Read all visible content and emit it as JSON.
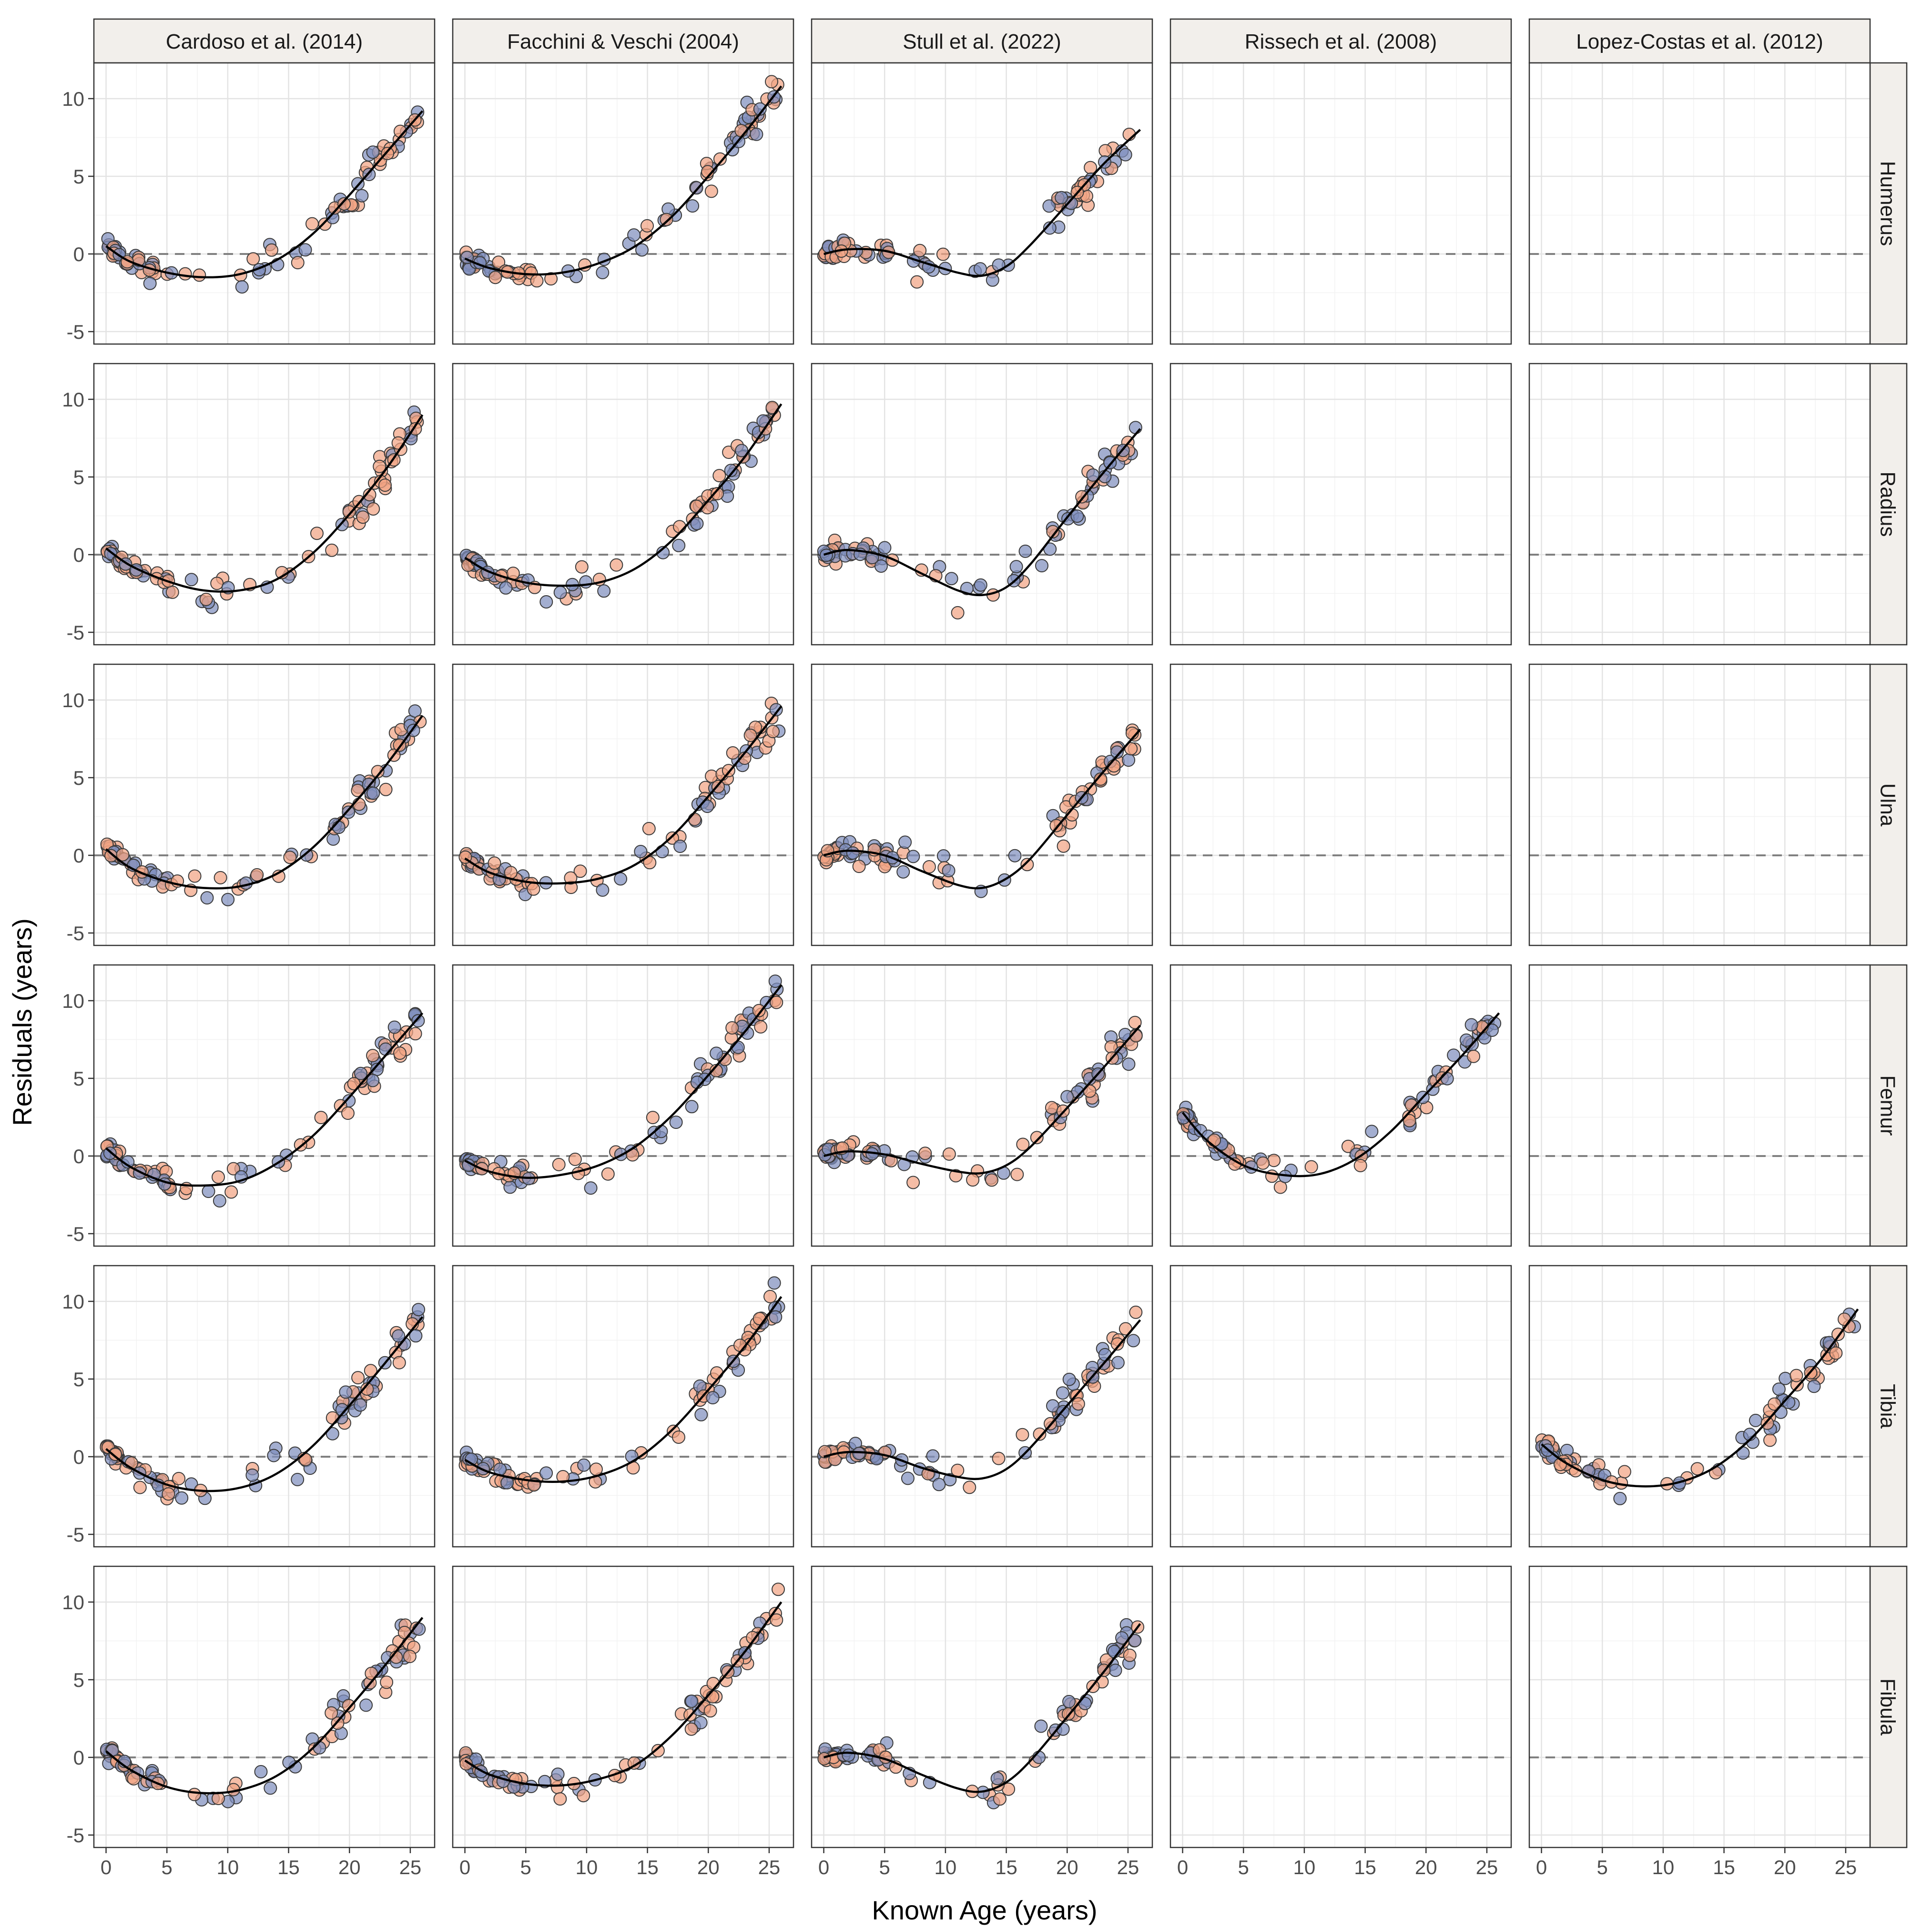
{
  "figure": {
    "xlabel": "Known Age (years)",
    "ylabel": "Residuals (years)",
    "columns": [
      "Cardoso et al. (2014)",
      "Facchini & Veschi (2004)",
      "Stull et al. (2022)",
      "Rissech et al. (2008)",
      "Lopez-Costas et al. (2012)"
    ],
    "rows": [
      "Humerus",
      "Radius",
      "Ulna",
      "Femur",
      "Tibia",
      "Fibula"
    ],
    "x_ticks": [
      "0",
      "5",
      "10",
      "15",
      "20",
      "25"
    ],
    "y_ticks": [
      "-5",
      "0",
      "5",
      "10"
    ],
    "colors": {
      "group_a": "#7f8fbe",
      "group_b": "#f1a383",
      "strip_bg": "#f2efeb",
      "fit_line": "#000000",
      "reference_line": "#808080"
    }
  },
  "chart_data": {
    "type": "scatter",
    "facet": "grid",
    "xlim": [
      -1,
      27
    ],
    "ylim": [
      -5.8,
      12.3
    ],
    "grid": true,
    "reference_line_y": 0,
    "series": [
      "group_a (blue points)",
      "group_b (orange points)",
      "fitted smooth curve"
    ],
    "panels": [
      {
        "row": "Humerus",
        "col": "Cardoso et al. (2014)",
        "has_data": true,
        "trend_x": [
          0,
          2,
          5,
          8,
          11,
          14,
          17,
          20,
          23,
          26
        ],
        "trend_y": [
          0.5,
          -0.5,
          -1.2,
          -1.5,
          -1.3,
          -0.4,
          1.3,
          3.8,
          6.5,
          9.2
        ]
      },
      {
        "row": "Humerus",
        "col": "Facchini & Veschi (2004)",
        "has_data": true,
        "trend_x": [
          0,
          2,
          5,
          8,
          11,
          14,
          17,
          20,
          23,
          26
        ],
        "trend_y": [
          -0.3,
          -0.9,
          -1.3,
          -1.2,
          -0.6,
          0.5,
          2.4,
          5.0,
          7.8,
          10.8
        ]
      },
      {
        "row": "Humerus",
        "col": "Stull et al. (2022)",
        "has_data": true,
        "trend_x": [
          0,
          2,
          5,
          8,
          11,
          13,
          15,
          17,
          20,
          23,
          26
        ],
        "trend_y": [
          0.0,
          0.3,
          0.2,
          -0.5,
          -1.2,
          -1.4,
          -0.8,
          0.6,
          3.2,
          5.8,
          8.0
        ]
      },
      {
        "row": "Humerus",
        "col": "Rissech et al. (2008)",
        "has_data": false
      },
      {
        "row": "Humerus",
        "col": "Lopez-Costas et al. (2012)",
        "has_data": false
      },
      {
        "row": "Radius",
        "col": "Cardoso et al. (2014)",
        "has_data": true,
        "trend_x": [
          0,
          2,
          5,
          8,
          11,
          14,
          17,
          20,
          23,
          26
        ],
        "trend_y": [
          0.4,
          -0.7,
          -1.7,
          -2.3,
          -2.3,
          -1.6,
          0.1,
          2.6,
          5.5,
          9.0
        ]
      },
      {
        "row": "Radius",
        "col": "Facchini & Veschi (2004)",
        "has_data": true,
        "trend_x": [
          0,
          2,
          5,
          8,
          11,
          14,
          17,
          20,
          23,
          26
        ],
        "trend_y": [
          -0.2,
          -1.1,
          -1.8,
          -2.0,
          -1.8,
          -0.9,
          0.9,
          3.5,
          6.3,
          9.7
        ]
      },
      {
        "row": "Radius",
        "col": "Stull et al. (2022)",
        "has_data": true,
        "trend_x": [
          0,
          2,
          5,
          8,
          11,
          13,
          15,
          17,
          20,
          23,
          26
        ],
        "trend_y": [
          0.0,
          0.3,
          -0.1,
          -1.2,
          -2.3,
          -2.6,
          -2.1,
          -0.6,
          2.4,
          5.3,
          8.1
        ]
      },
      {
        "row": "Radius",
        "col": "Rissech et al. (2008)",
        "has_data": false
      },
      {
        "row": "Radius",
        "col": "Lopez-Costas et al. (2012)",
        "has_data": false
      },
      {
        "row": "Ulna",
        "col": "Cardoso et al. (2014)",
        "has_data": true,
        "trend_x": [
          0,
          2,
          5,
          8,
          11,
          14,
          17,
          20,
          23,
          26
        ],
        "trend_y": [
          0.4,
          -0.8,
          -1.7,
          -2.1,
          -2.0,
          -1.2,
          0.5,
          3.0,
          5.8,
          9.0
        ]
      },
      {
        "row": "Ulna",
        "col": "Facchini & Veschi (2004)",
        "has_data": true,
        "trend_x": [
          0,
          2,
          5,
          8,
          11,
          14,
          17,
          20,
          23,
          26
        ],
        "trend_y": [
          -0.2,
          -1.1,
          -1.7,
          -1.8,
          -1.5,
          -0.6,
          1.2,
          3.8,
          6.6,
          9.6
        ]
      },
      {
        "row": "Ulna",
        "col": "Stull et al. (2022)",
        "has_data": true,
        "trend_x": [
          0,
          2,
          5,
          8,
          11,
          13,
          15,
          17,
          20,
          23,
          26
        ],
        "trend_y": [
          0.0,
          0.3,
          0.0,
          -1.0,
          -1.9,
          -2.1,
          -1.5,
          -0.2,
          2.6,
          5.4,
          8.1
        ]
      },
      {
        "row": "Ulna",
        "col": "Rissech et al. (2008)",
        "has_data": false
      },
      {
        "row": "Ulna",
        "col": "Lopez-Costas et al. (2012)",
        "has_data": false
      },
      {
        "row": "Femur",
        "col": "Cardoso et al. (2014)",
        "has_data": true,
        "trend_x": [
          0,
          2,
          5,
          8,
          11,
          14,
          17,
          20,
          23,
          26
        ],
        "trend_y": [
          0.5,
          -0.7,
          -1.7,
          -1.9,
          -1.6,
          -0.5,
          1.3,
          3.8,
          6.5,
          9.2
        ]
      },
      {
        "row": "Femur",
        "col": "Facchini & Veschi (2004)",
        "has_data": true,
        "trend_x": [
          0,
          2,
          5,
          8,
          11,
          14,
          17,
          20,
          23,
          26
        ],
        "trend_y": [
          -0.3,
          -1.0,
          -1.4,
          -1.2,
          -0.6,
          0.6,
          2.6,
          5.2,
          8.0,
          11.0
        ]
      },
      {
        "row": "Femur",
        "col": "Stull et al. (2022)",
        "has_data": true,
        "trend_x": [
          0,
          2,
          5,
          8,
          11,
          13,
          15,
          17,
          20,
          23,
          26
        ],
        "trend_y": [
          0.0,
          0.3,
          0.1,
          -0.5,
          -1.0,
          -1.1,
          -0.6,
          0.6,
          3.1,
          5.7,
          8.4
        ]
      },
      {
        "row": "Femur",
        "col": "Rissech et al. (2008)",
        "has_data": true,
        "trend_x": [
          0,
          2,
          5,
          8,
          11,
          14,
          17,
          20,
          23,
          26
        ],
        "trend_y": [
          2.8,
          1.0,
          -0.6,
          -1.2,
          -1.2,
          -0.3,
          1.5,
          4.0,
          6.5,
          9.2
        ]
      },
      {
        "row": "Femur",
        "col": "Lopez-Costas et al. (2012)",
        "has_data": false
      },
      {
        "row": "Tibia",
        "col": "Cardoso et al. (2014)",
        "has_data": true,
        "trend_x": [
          0,
          2,
          5,
          8,
          11,
          14,
          17,
          20,
          23,
          26
        ],
        "trend_y": [
          0.5,
          -0.7,
          -1.8,
          -2.2,
          -2.0,
          -1.1,
          0.7,
          3.3,
          6.1,
          9.0
        ]
      },
      {
        "row": "Tibia",
        "col": "Facchini & Veschi (2004)",
        "has_data": true,
        "trend_x": [
          0,
          2,
          5,
          8,
          11,
          14,
          17,
          20,
          23,
          26
        ],
        "trend_y": [
          -0.2,
          -1.0,
          -1.5,
          -1.6,
          -1.2,
          -0.2,
          1.7,
          4.3,
          7.1,
          10.3
        ]
      },
      {
        "row": "Tibia",
        "col": "Stull et al. (2022)",
        "has_data": true,
        "trend_x": [
          0,
          2,
          5,
          8,
          11,
          13,
          15,
          17,
          20,
          23,
          26
        ],
        "trend_y": [
          0.0,
          0.3,
          0.1,
          -0.7,
          -1.3,
          -1.4,
          -0.8,
          0.6,
          3.3,
          6.0,
          8.8
        ]
      },
      {
        "row": "Tibia",
        "col": "Rissech et al. (2008)",
        "has_data": false
      },
      {
        "row": "Tibia",
        "col": "Lopez-Costas et al. (2012)",
        "has_data": true,
        "trend_x": [
          0,
          2,
          5,
          8,
          11,
          14,
          17,
          20,
          23,
          26
        ],
        "trend_y": [
          0.8,
          -0.4,
          -1.5,
          -1.9,
          -1.7,
          -0.8,
          1.0,
          3.6,
          6.3,
          9.5
        ]
      },
      {
        "row": "Fibula",
        "col": "Cardoso et al. (2014)",
        "has_data": true,
        "trend_x": [
          0,
          2,
          5,
          8,
          11,
          14,
          17,
          20,
          23,
          26
        ],
        "trend_y": [
          0.4,
          -0.8,
          -1.9,
          -2.3,
          -2.1,
          -1.2,
          0.6,
          3.2,
          6.0,
          9.0
        ]
      },
      {
        "row": "Fibula",
        "col": "Facchini & Veschi (2004)",
        "has_data": true,
        "trend_x": [
          0,
          2,
          5,
          8,
          11,
          14,
          17,
          20,
          23,
          26
        ],
        "trend_y": [
          -0.2,
          -1.1,
          -1.7,
          -1.8,
          -1.4,
          -0.5,
          1.4,
          4.0,
          6.8,
          10.0
        ]
      },
      {
        "row": "Fibula",
        "col": "Stull et al. (2022)",
        "has_data": true,
        "trend_x": [
          0,
          2,
          5,
          8,
          11,
          13,
          15,
          17,
          20,
          23,
          26
        ],
        "trend_y": [
          0.0,
          0.3,
          -0.1,
          -1.1,
          -2.0,
          -2.2,
          -1.6,
          -0.2,
          2.6,
          5.5,
          8.6
        ]
      },
      {
        "row": "Fibula",
        "col": "Rissech et al. (2008)",
        "has_data": false
      },
      {
        "row": "Fibula",
        "col": "Lopez-Costas et al. (2012)",
        "has_data": false
      }
    ]
  }
}
